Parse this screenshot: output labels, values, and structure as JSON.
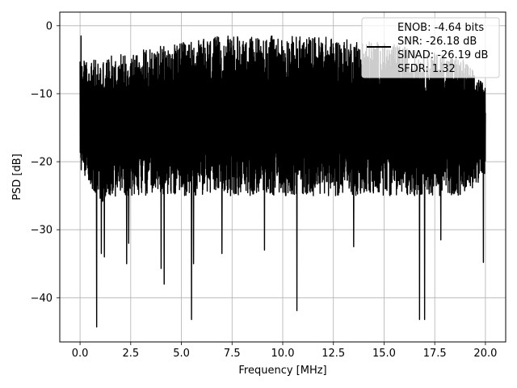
{
  "chart_data": {
    "type": "line",
    "xlabel": "Frequency [MHz]",
    "ylabel": "PSD [dB]",
    "xlim": [
      -1.0,
      21.0
    ],
    "ylim": [
      -46.5,
      2.0
    ],
    "grid": true,
    "legend_placement": "top-right",
    "x_ticks": [
      0.0,
      2.5,
      5.0,
      7.5,
      10.0,
      12.5,
      15.0,
      17.5,
      20.0
    ],
    "x_tick_labels": [
      "0.0",
      "2.5",
      "5.0",
      "7.5",
      "10.0",
      "12.5",
      "15.0",
      "17.5",
      "20.0"
    ],
    "y_ticks": [
      0,
      -10,
      -20,
      -30,
      -40
    ],
    "y_tick_labels": [
      "0",
      "−10",
      "−20",
      "−30",
      "−40"
    ],
    "series": [
      {
        "color": "#000000",
        "x_start": 0.0,
        "x_end": 20.0,
        "dense_band": [
          [
            0.0,
            -21,
            -5
          ],
          [
            1.0,
            -26,
            -5
          ],
          [
            2.0,
            -25,
            -4
          ],
          [
            3.0,
            -25,
            -3.5
          ],
          [
            4.0,
            -25,
            -3
          ],
          [
            5.0,
            -25,
            -2.5
          ],
          [
            6.0,
            -25,
            -2
          ],
          [
            7.0,
            -25,
            -1.5
          ],
          [
            8.0,
            -25,
            -1.5
          ],
          [
            9.0,
            -25,
            -1.5
          ],
          [
            10.0,
            -25,
            -1.5
          ],
          [
            11.0,
            -25,
            -1.5
          ],
          [
            12.0,
            -25,
            -1.5
          ],
          [
            13.0,
            -25,
            -2
          ],
          [
            14.0,
            -25,
            -2
          ],
          [
            15.0,
            -25,
            -2.5
          ],
          [
            16.0,
            -25,
            -3
          ],
          [
            17.0,
            -25,
            -4
          ],
          [
            18.0,
            -25,
            -4
          ],
          [
            19.0,
            -25,
            -5
          ],
          [
            20.0,
            -22,
            -9
          ]
        ],
        "spikes": [
          [
            0.05,
            -1.5
          ],
          [
            0.82,
            -44.3
          ],
          [
            1.05,
            -33.5
          ],
          [
            1.2,
            -34.0
          ],
          [
            2.3,
            -35.0
          ],
          [
            2.4,
            -32.0
          ],
          [
            4.0,
            -35.7
          ],
          [
            4.15,
            -38.0
          ],
          [
            5.5,
            -43.2
          ],
          [
            5.6,
            -35.0
          ],
          [
            7.0,
            -33.5
          ],
          [
            9.1,
            -33.0
          ],
          [
            10.7,
            -41.9
          ],
          [
            13.5,
            -32.5
          ],
          [
            16.75,
            -43.2
          ],
          [
            17.0,
            -43.2
          ],
          [
            17.8,
            -31.5
          ],
          [
            19.9,
            -34.8
          ]
        ]
      }
    ],
    "legend": {
      "entries": [
        "ENOB: -4.64 bits",
        "SNR: -26.18 dB",
        "SINAD: -26.19 dB",
        "SFDR: 1.32"
      ]
    }
  }
}
